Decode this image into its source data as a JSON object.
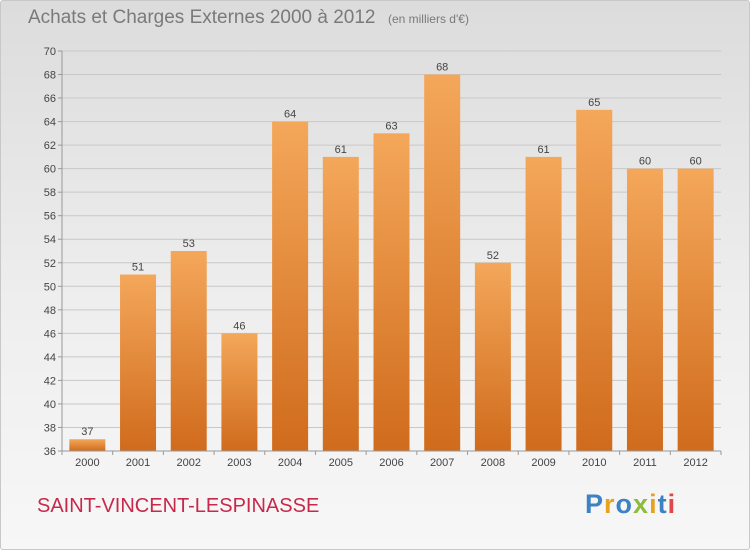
{
  "header": {
    "title": "Achats et Charges Externes 2000 à 2012",
    "unit": "(en milliers d'€)"
  },
  "footer": {
    "commune": "SAINT-VINCENT-LESPINASSE",
    "brand": "Proxiti",
    "brand_colors": [
      "#3d82c4",
      "#e8a21e",
      "#3d82c4",
      "#8dbb3a",
      "#e8a21e",
      "#3d82c4",
      "#e04848"
    ]
  },
  "colors": {
    "bar_light": "#f4a75a",
    "bar_dark": "#d06b1c",
    "grid": "#c8c8c8",
    "axis": "#999999",
    "commune": "#c8284a",
    "title": "#7a7a7a"
  },
  "chart_data": {
    "type": "bar",
    "title": "Achats et Charges Externes 2000 à 2012",
    "subtitle": "(en milliers d'€)",
    "categories": [
      "2000",
      "2001",
      "2002",
      "2003",
      "2004",
      "2005",
      "2006",
      "2007",
      "2008",
      "2009",
      "2010",
      "2011",
      "2012"
    ],
    "values": [
      37,
      51,
      53,
      46,
      64,
      61,
      63,
      68,
      52,
      61,
      65,
      60,
      60
    ],
    "ylim": [
      36,
      70
    ],
    "yticks": [
      36,
      38,
      40,
      42,
      44,
      46,
      48,
      50,
      52,
      54,
      56,
      58,
      60,
      62,
      64,
      66,
      68,
      70
    ],
    "grid": true,
    "xlabel": "",
    "ylabel": ""
  }
}
